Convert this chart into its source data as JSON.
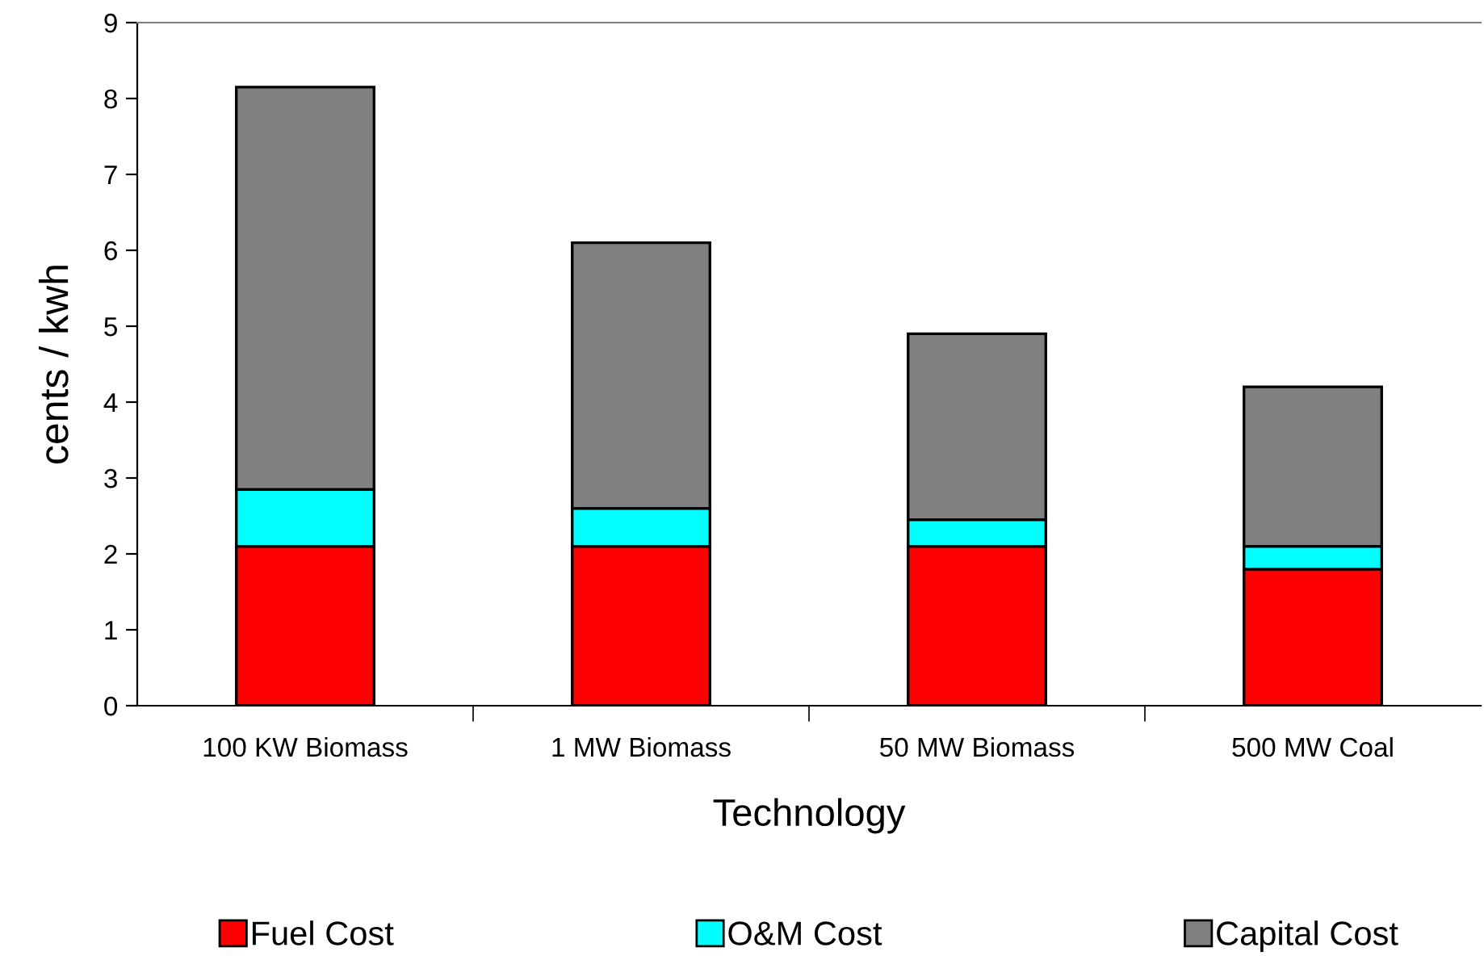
{
  "chart_data": {
    "type": "bar",
    "stacked": true,
    "xlabel": "Technology",
    "ylabel": "cents / kwh",
    "categories": [
      "100 KW Biomass",
      "1 MW Biomass",
      "50 MW Biomass",
      "500 MW Coal"
    ],
    "series": [
      {
        "name": "Fuel Cost",
        "color": "#ff0000",
        "values": [
          2.1,
          2.1,
          2.1,
          1.8
        ]
      },
      {
        "name": "O&M Cost",
        "color": "#00ffff",
        "values": [
          0.75,
          0.5,
          0.35,
          0.3
        ]
      },
      {
        "name": "Capital Cost",
        "color": "#808080",
        "values": [
          5.3,
          3.5,
          2.45,
          2.1
        ]
      }
    ],
    "ylim": [
      0,
      9
    ],
    "yticks": [
      0,
      1,
      2,
      3,
      4,
      5,
      6,
      7,
      8,
      9
    ],
    "grid": false,
    "legend": "bottom"
  }
}
